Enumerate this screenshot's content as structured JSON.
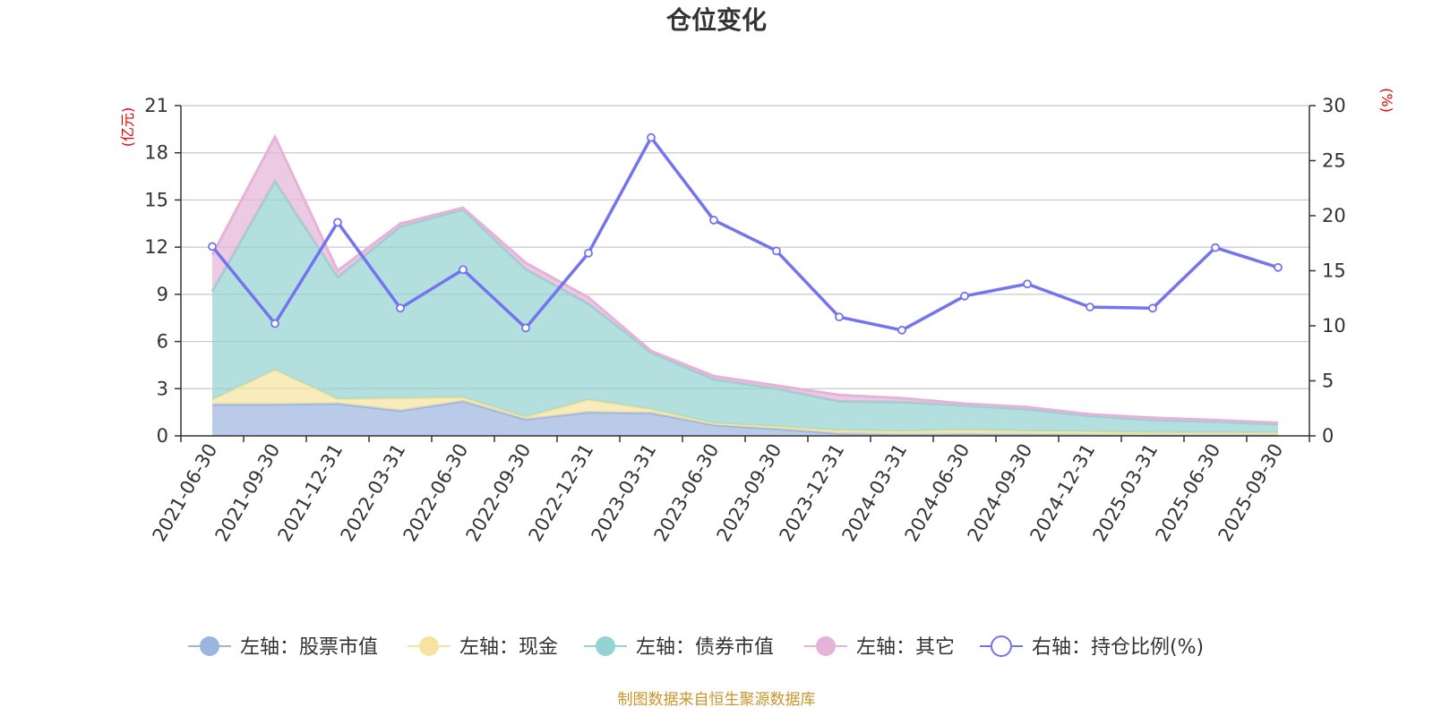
{
  "chart_data": {
    "type": "area",
    "title": "仓位变化",
    "source_note": "制图数据来自恒生聚源数据库",
    "left_unit": "(亿元)",
    "right_unit": "(%)",
    "x": [
      "2021-06-30",
      "2021-09-30",
      "2021-12-31",
      "2022-03-31",
      "2022-06-30",
      "2022-09-30",
      "2022-12-31",
      "2023-03-31",
      "2023-06-30",
      "2023-09-30",
      "2023-12-31",
      "2024-03-31",
      "2024-06-30",
      "2024-09-30",
      "2024-12-31",
      "2025-03-31",
      "2025-06-30",
      "2025-09-30"
    ],
    "left_axis": {
      "min": 0,
      "max": 21,
      "ticks": [
        0,
        3,
        6,
        9,
        12,
        15,
        18,
        21
      ]
    },
    "right_axis": {
      "min": 0,
      "max": 30,
      "ticks": [
        0,
        5,
        10,
        15,
        20,
        25,
        30
      ]
    },
    "grid": true,
    "legend_position": "bottom",
    "series": [
      {
        "name": "左轴：股票市值",
        "axis": "left",
        "kind": "stacked-area",
        "color": "#9bb5e0",
        "values": [
          2.0,
          2.0,
          2.05,
          1.6,
          2.2,
          1.05,
          1.5,
          1.45,
          0.7,
          0.45,
          0.15,
          0.1,
          0.12,
          0.1,
          0.07,
          0.05,
          0.05,
          0.05
        ]
      },
      {
        "name": "左轴：现金",
        "axis": "left",
        "kind": "stacked-area",
        "color": "#f5e39f",
        "values": [
          0.3,
          2.2,
          0.3,
          0.8,
          0.25,
          0.15,
          0.8,
          0.25,
          0.1,
          0.15,
          0.2,
          0.2,
          0.25,
          0.2,
          0.2,
          0.15,
          0.15,
          0.15
        ]
      },
      {
        "name": "左轴：债券市值",
        "axis": "left",
        "kind": "stacked-area",
        "color": "#93d3d2",
        "values": [
          6.9,
          12.0,
          7.75,
          10.9,
          11.95,
          9.4,
          6.1,
          3.6,
          2.8,
          2.4,
          1.85,
          1.85,
          1.55,
          1.4,
          1.0,
          0.8,
          0.7,
          0.55
        ]
      },
      {
        "name": "左轴：其它",
        "axis": "left",
        "kind": "stacked-area",
        "color": "#e5b3d8",
        "values": [
          2.3,
          2.8,
          0.4,
          0.2,
          0.1,
          0.4,
          0.4,
          0.1,
          0.2,
          0.2,
          0.4,
          0.25,
          0.13,
          0.13,
          0.1,
          0.15,
          0.1,
          0.08
        ]
      },
      {
        "name": "右轴：持仓比例(%)",
        "axis": "right",
        "kind": "line",
        "color": "#7474ee",
        "values": [
          17.2,
          10.2,
          19.4,
          11.6,
          15.1,
          9.8,
          16.6,
          27.1,
          19.6,
          16.8,
          10.8,
          9.6,
          12.7,
          13.8,
          11.7,
          11.6,
          17.1,
          15.3
        ]
      }
    ]
  }
}
